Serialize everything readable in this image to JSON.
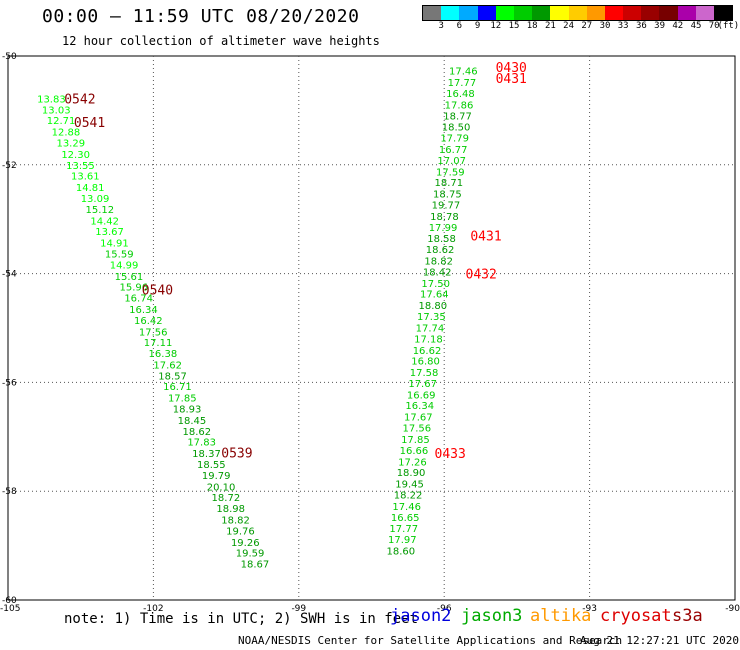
{
  "header": {
    "title": "00:00 – 11:59 UTC 08/20/2020",
    "subtitle": "12 hour collection of altimeter wave heights"
  },
  "colorbar": {
    "colors": [
      "#777777",
      "#00ffff",
      "#00aaff",
      "#0000ff",
      "#00ff00",
      "#00cc00",
      "#009900",
      "#ffff00",
      "#ffcc00",
      "#ff9900",
      "#ff0000",
      "#cc0000",
      "#990000",
      "#770000",
      "#aa00aa",
      "#cc66cc",
      "#000000"
    ],
    "labels": [
      "3",
      "6",
      "9",
      "12",
      "15",
      "18",
      "21",
      "24",
      "27",
      "30",
      "33",
      "36",
      "39",
      "42",
      "45",
      "70",
      "(ft)"
    ]
  },
  "chart_data": {
    "type": "scatter",
    "title": "00:00 – 11:59 UTC 08/20/2020",
    "subtitle": "12 hour collection of altimeter wave heights",
    "xlim": [
      -105,
      -90
    ],
    "ylim": [
      -60,
      -50
    ],
    "xticks": [
      "-105",
      "-102",
      "-99",
      "-96",
      "-93",
      "-90"
    ],
    "yticks": [
      "-50",
      "-52",
      "-54",
      "-56",
      "-58",
      "-60"
    ],
    "grid": true,
    "color_scale_ft": [
      3,
      6,
      9,
      12,
      15,
      18,
      21,
      24,
      27,
      30,
      33,
      36,
      39,
      42,
      45,
      70
    ],
    "series": [
      {
        "name": "jason3",
        "color": "#00bb00",
        "points": [
          {
            "x": -104.4,
            "y": -50.78,
            "v": "13.83"
          },
          {
            "x": -104.3,
            "y": -50.98,
            "v": "13.03"
          },
          {
            "x": -104.2,
            "y": -51.18,
            "v": "12.71"
          },
          {
            "x": -104.1,
            "y": -51.39,
            "v": "12.88"
          },
          {
            "x": -104.0,
            "y": -51.59,
            "v": "13.29"
          },
          {
            "x": -103.9,
            "y": -51.8,
            "v": "12.30"
          },
          {
            "x": -103.8,
            "y": -52.0,
            "v": "13.55"
          },
          {
            "x": -103.7,
            "y": -52.2,
            "v": "13.61"
          },
          {
            "x": -103.6,
            "y": -52.41,
            "v": "14.81"
          },
          {
            "x": -103.5,
            "y": -52.61,
            "v": "13.09"
          },
          {
            "x": -103.4,
            "y": -52.81,
            "v": "15.12"
          },
          {
            "x": -103.3,
            "y": -53.02,
            "v": "14.42"
          },
          {
            "x": -103.2,
            "y": -53.22,
            "v": "13.67"
          },
          {
            "x": -103.1,
            "y": -53.43,
            "v": "14.91"
          },
          {
            "x": -103.0,
            "y": -53.63,
            "v": "15.59"
          },
          {
            "x": -102.9,
            "y": -53.83,
            "v": "14.99"
          },
          {
            "x": -102.8,
            "y": -54.04,
            "v": "15.61"
          },
          {
            "x": -102.7,
            "y": -54.24,
            "v": "15.96"
          },
          {
            "x": -102.6,
            "y": -54.44,
            "v": "16.74"
          },
          {
            "x": -102.5,
            "y": -54.65,
            "v": "16.34"
          },
          {
            "x": -102.4,
            "y": -54.85,
            "v": "16.42"
          },
          {
            "x": -102.3,
            "y": -55.06,
            "v": "17.56"
          },
          {
            "x": -102.2,
            "y": -55.26,
            "v": "17.11"
          },
          {
            "x": -102.1,
            "y": -55.46,
            "v": "16.38"
          },
          {
            "x": -102.0,
            "y": -55.67,
            "v": "17.62"
          },
          {
            "x": -101.9,
            "y": -55.87,
            "v": "18.57"
          },
          {
            "x": -101.8,
            "y": -56.07,
            "v": "16.71"
          },
          {
            "x": -101.7,
            "y": -56.28,
            "v": "17.85"
          },
          {
            "x": -101.6,
            "y": -56.48,
            "v": "18.93"
          },
          {
            "x": -101.5,
            "y": -56.69,
            "v": "18.45"
          },
          {
            "x": -101.4,
            "y": -56.89,
            "v": "18.62"
          },
          {
            "x": -101.3,
            "y": -57.09,
            "v": "17.83"
          },
          {
            "x": -101.2,
            "y": -57.3,
            "v": "18.37"
          },
          {
            "x": -101.1,
            "y": -57.5,
            "v": "18.55"
          },
          {
            "x": -101.0,
            "y": -57.7,
            "v": "19.79"
          },
          {
            "x": -100.9,
            "y": -57.91,
            "v": "20.10"
          },
          {
            "x": -100.8,
            "y": -58.11,
            "v": "18.72"
          },
          {
            "x": -100.7,
            "y": -58.31,
            "v": "18.98"
          },
          {
            "x": -100.6,
            "y": -58.52,
            "v": "18.82"
          },
          {
            "x": -100.5,
            "y": -58.72,
            "v": "19.76"
          },
          {
            "x": -100.4,
            "y": -58.93,
            "v": "19.26"
          },
          {
            "x": -100.3,
            "y": -59.13,
            "v": "19.59"
          },
          {
            "x": -100.2,
            "y": -59.33,
            "v": "18.67"
          }
        ]
      },
      {
        "name": "jason3",
        "color": "#00bb00",
        "points": [
          {
            "x": -95.9,
            "y": -50.27,
            "v": "17.46"
          },
          {
            "x": -95.93,
            "y": -50.48,
            "v": "17.77"
          },
          {
            "x": -95.96,
            "y": -50.68,
            "v": "16.48"
          },
          {
            "x": -95.99,
            "y": -50.89,
            "v": "17.86"
          },
          {
            "x": -96.02,
            "y": -51.09,
            "v": "18.77"
          },
          {
            "x": -96.05,
            "y": -51.3,
            "v": "18.50"
          },
          {
            "x": -96.08,
            "y": -51.5,
            "v": "17.79"
          },
          {
            "x": -96.11,
            "y": -51.71,
            "v": "16.77"
          },
          {
            "x": -96.14,
            "y": -51.91,
            "v": "17.07"
          },
          {
            "x": -96.17,
            "y": -52.12,
            "v": "17.59"
          },
          {
            "x": -96.2,
            "y": -52.32,
            "v": "18.71"
          },
          {
            "x": -96.23,
            "y": -52.53,
            "v": "18.75"
          },
          {
            "x": -96.26,
            "y": -52.73,
            "v": "19.77"
          },
          {
            "x": -96.29,
            "y": -52.94,
            "v": "18.78"
          },
          {
            "x": -96.32,
            "y": -53.14,
            "v": "17.99"
          },
          {
            "x": -96.35,
            "y": -53.35,
            "v": "18.58"
          },
          {
            "x": -96.38,
            "y": -53.55,
            "v": "18.62"
          },
          {
            "x": -96.41,
            "y": -53.76,
            "v": "18.82"
          },
          {
            "x": -96.44,
            "y": -53.96,
            "v": "18.42"
          },
          {
            "x": -96.47,
            "y": -54.17,
            "v": "17.50"
          },
          {
            "x": -96.5,
            "y": -54.37,
            "v": "17.64"
          },
          {
            "x": -96.53,
            "y": -54.58,
            "v": "18.80"
          },
          {
            "x": -96.56,
            "y": -54.78,
            "v": "17.35"
          },
          {
            "x": -96.59,
            "y": -54.99,
            "v": "17.74"
          },
          {
            "x": -96.62,
            "y": -55.19,
            "v": "17.18"
          },
          {
            "x": -96.65,
            "y": -55.4,
            "v": "16.62"
          },
          {
            "x": -96.68,
            "y": -55.6,
            "v": "16.80"
          },
          {
            "x": -96.71,
            "y": -55.81,
            "v": "17.58"
          },
          {
            "x": -96.74,
            "y": -56.01,
            "v": "17.67"
          },
          {
            "x": -96.77,
            "y": -56.22,
            "v": "16.69"
          },
          {
            "x": -96.8,
            "y": -56.42,
            "v": "16.34"
          },
          {
            "x": -96.83,
            "y": -56.63,
            "v": "17.67"
          },
          {
            "x": -96.86,
            "y": -56.83,
            "v": "17.56"
          },
          {
            "x": -96.89,
            "y": -57.04,
            "v": "17.85"
          },
          {
            "x": -96.92,
            "y": -57.24,
            "v": "16.66"
          },
          {
            "x": -96.95,
            "y": -57.45,
            "v": "17.26"
          },
          {
            "x": -96.98,
            "y": -57.65,
            "v": "18.90"
          },
          {
            "x": -97.01,
            "y": -57.86,
            "v": "19.45"
          },
          {
            "x": -97.04,
            "y": -58.06,
            "v": "18.22"
          },
          {
            "x": -97.07,
            "y": -58.27,
            "v": "17.46"
          },
          {
            "x": -97.1,
            "y": -58.47,
            "v": "16.65"
          },
          {
            "x": -97.13,
            "y": -58.68,
            "v": "17.77"
          },
          {
            "x": -97.16,
            "y": -58.88,
            "v": "17.97"
          },
          {
            "x": -97.19,
            "y": -59.09,
            "v": "18.60"
          }
        ]
      }
    ],
    "time_labels": [
      {
        "text": "0542",
        "x": -103.84,
        "y": -50.78,
        "color": "#880000"
      },
      {
        "text": "0541",
        "x": -103.64,
        "y": -51.21,
        "color": "#880000"
      },
      {
        "text": "0540",
        "x": -102.24,
        "y": -54.29,
        "color": "#880000"
      },
      {
        "text": "0539",
        "x": -100.6,
        "y": -57.29,
        "color": "#880000"
      },
      {
        "text": "0430",
        "x": -94.94,
        "y": -50.2,
        "color": "#ff0000"
      },
      {
        "text": "0431",
        "x": -94.94,
        "y": -50.4,
        "color": "#ff0000"
      },
      {
        "text": "0431",
        "x": -95.46,
        "y": -53.3,
        "color": "#ff0000"
      },
      {
        "text": "0432",
        "x": -95.56,
        "y": -54.0,
        "color": "#ff0000"
      },
      {
        "text": "0433",
        "x": -96.2,
        "y": -57.3,
        "color": "#ff0000"
      }
    ]
  },
  "note": "note: 1) Time is in UTC; 2) SWH is in feet",
  "satellites": [
    {
      "name": "jason2",
      "color": "#0000dd"
    },
    {
      "name": "jason3",
      "color": "#00aa00"
    },
    {
      "name": "altika",
      "color": "#ff9900"
    },
    {
      "name": "cryosat",
      "color": "#dd0000"
    },
    {
      "name": "s3a",
      "color": "#990000"
    }
  ],
  "footer": {
    "credit": "NOAA/NESDIS Center for Satellite Applications and Research",
    "timestamp": "Aug 21 12:27:21 UTC 2020"
  }
}
